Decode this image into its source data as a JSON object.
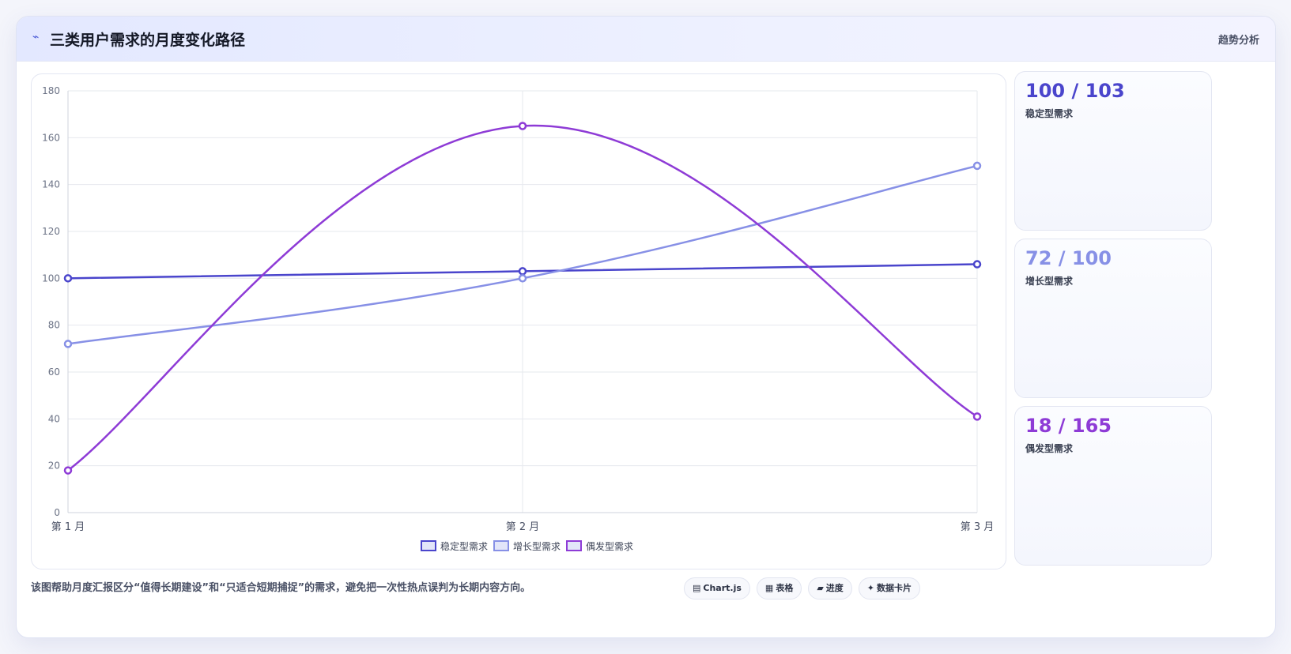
{
  "header": {
    "icon": "lightning-icon",
    "title": "三类用户需求的月度变化路径",
    "tag": "趋势分析"
  },
  "colors": {
    "stable": "#4a45cc",
    "growth": "#8790e6",
    "sudden": "#8e3bd6"
  },
  "chart_data": {
    "type": "line",
    "categories": [
      "第 1 月",
      "第 2 月",
      "第 3 月"
    ],
    "series": [
      {
        "name": "稳定型需求",
        "values": [
          100,
          103,
          106
        ],
        "color": "#4a45cc"
      },
      {
        "name": "增长型需求",
        "values": [
          72,
          100,
          148
        ],
        "color": "#8790e6"
      },
      {
        "name": "偶发型需求",
        "values": [
          18,
          165,
          41
        ],
        "color": "#8e3bd6"
      }
    ],
    "ylim": [
      0,
      180
    ],
    "yticks": [
      0,
      20,
      40,
      60,
      80,
      100,
      120,
      140,
      160,
      180
    ],
    "smooth": true,
    "grid": true,
    "legend": "bottom"
  },
  "stats": [
    {
      "value": "100 / 103",
      "label": "稳定型需求",
      "color": "#4a45cc"
    },
    {
      "value": "72 / 100",
      "label": "增长型需求",
      "color": "#8790e6"
    },
    {
      "value": "18 / 165",
      "label": "偶发型需求",
      "color": "#8e3bd6"
    }
  ],
  "footer": {
    "text": "该图帮助月度汇报区分“值得长期建设”和“只适合短期捕捉”的需求，避免把一次性热点误判为长期内容方向。",
    "pills": [
      {
        "icon": "chart-icon",
        "glyph": "▤",
        "label": "Chart.js"
      },
      {
        "icon": "table-icon",
        "glyph": "▦",
        "label": "表格"
      },
      {
        "icon": "progress-icon",
        "glyph": "▰",
        "label": "进度"
      },
      {
        "icon": "sparkle-icon",
        "glyph": "✦",
        "label": "数据卡片"
      }
    ]
  }
}
